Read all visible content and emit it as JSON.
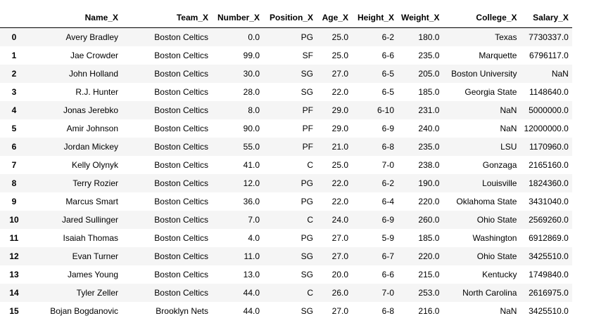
{
  "dataframe": {
    "columns": [
      "",
      "Name_X",
      "Team_X",
      "Number_X",
      "Position_X",
      "Age_X",
      "Height_X",
      "Weight_X",
      "College_X",
      "Salary_X"
    ],
    "rows": [
      [
        "0",
        "Avery Bradley",
        "Boston Celtics",
        "0.0",
        "PG",
        "25.0",
        "6-2",
        "180.0",
        "Texas",
        "7730337.0"
      ],
      [
        "1",
        "Jae Crowder",
        "Boston Celtics",
        "99.0",
        "SF",
        "25.0",
        "6-6",
        "235.0",
        "Marquette",
        "6796117.0"
      ],
      [
        "2",
        "John Holland",
        "Boston Celtics",
        "30.0",
        "SG",
        "27.0",
        "6-5",
        "205.0",
        "Boston University",
        "NaN"
      ],
      [
        "3",
        "R.J. Hunter",
        "Boston Celtics",
        "28.0",
        "SG",
        "22.0",
        "6-5",
        "185.0",
        "Georgia State",
        "1148640.0"
      ],
      [
        "4",
        "Jonas Jerebko",
        "Boston Celtics",
        "8.0",
        "PF",
        "29.0",
        "6-10",
        "231.0",
        "NaN",
        "5000000.0"
      ],
      [
        "5",
        "Amir Johnson",
        "Boston Celtics",
        "90.0",
        "PF",
        "29.0",
        "6-9",
        "240.0",
        "NaN",
        "12000000.0"
      ],
      [
        "6",
        "Jordan Mickey",
        "Boston Celtics",
        "55.0",
        "PF",
        "21.0",
        "6-8",
        "235.0",
        "LSU",
        "1170960.0"
      ],
      [
        "7",
        "Kelly Olynyk",
        "Boston Celtics",
        "41.0",
        "C",
        "25.0",
        "7-0",
        "238.0",
        "Gonzaga",
        "2165160.0"
      ],
      [
        "8",
        "Terry Rozier",
        "Boston Celtics",
        "12.0",
        "PG",
        "22.0",
        "6-2",
        "190.0",
        "Louisville",
        "1824360.0"
      ],
      [
        "9",
        "Marcus Smart",
        "Boston Celtics",
        "36.0",
        "PG",
        "22.0",
        "6-4",
        "220.0",
        "Oklahoma State",
        "3431040.0"
      ],
      [
        "10",
        "Jared Sullinger",
        "Boston Celtics",
        "7.0",
        "C",
        "24.0",
        "6-9",
        "260.0",
        "Ohio State",
        "2569260.0"
      ],
      [
        "11",
        "Isaiah Thomas",
        "Boston Celtics",
        "4.0",
        "PG",
        "27.0",
        "5-9",
        "185.0",
        "Washington",
        "6912869.0"
      ],
      [
        "12",
        "Evan Turner",
        "Boston Celtics",
        "11.0",
        "SG",
        "27.0",
        "6-7",
        "220.0",
        "Ohio State",
        "3425510.0"
      ],
      [
        "13",
        "James Young",
        "Boston Celtics",
        "13.0",
        "SG",
        "20.0",
        "6-6",
        "215.0",
        "Kentucky",
        "1749840.0"
      ],
      [
        "14",
        "Tyler Zeller",
        "Boston Celtics",
        "44.0",
        "C",
        "26.0",
        "7-0",
        "253.0",
        "North Carolina",
        "2616975.0"
      ],
      [
        "15",
        "Bojan Bogdanovic",
        "Brooklyn Nets",
        "44.0",
        "SG",
        "27.0",
        "6-8",
        "216.0",
        "NaN",
        "3425510.0"
      ]
    ]
  },
  "colors": {
    "stripe": "#f5f5f5",
    "background": "#ffffff",
    "header_rule": "#000000"
  }
}
